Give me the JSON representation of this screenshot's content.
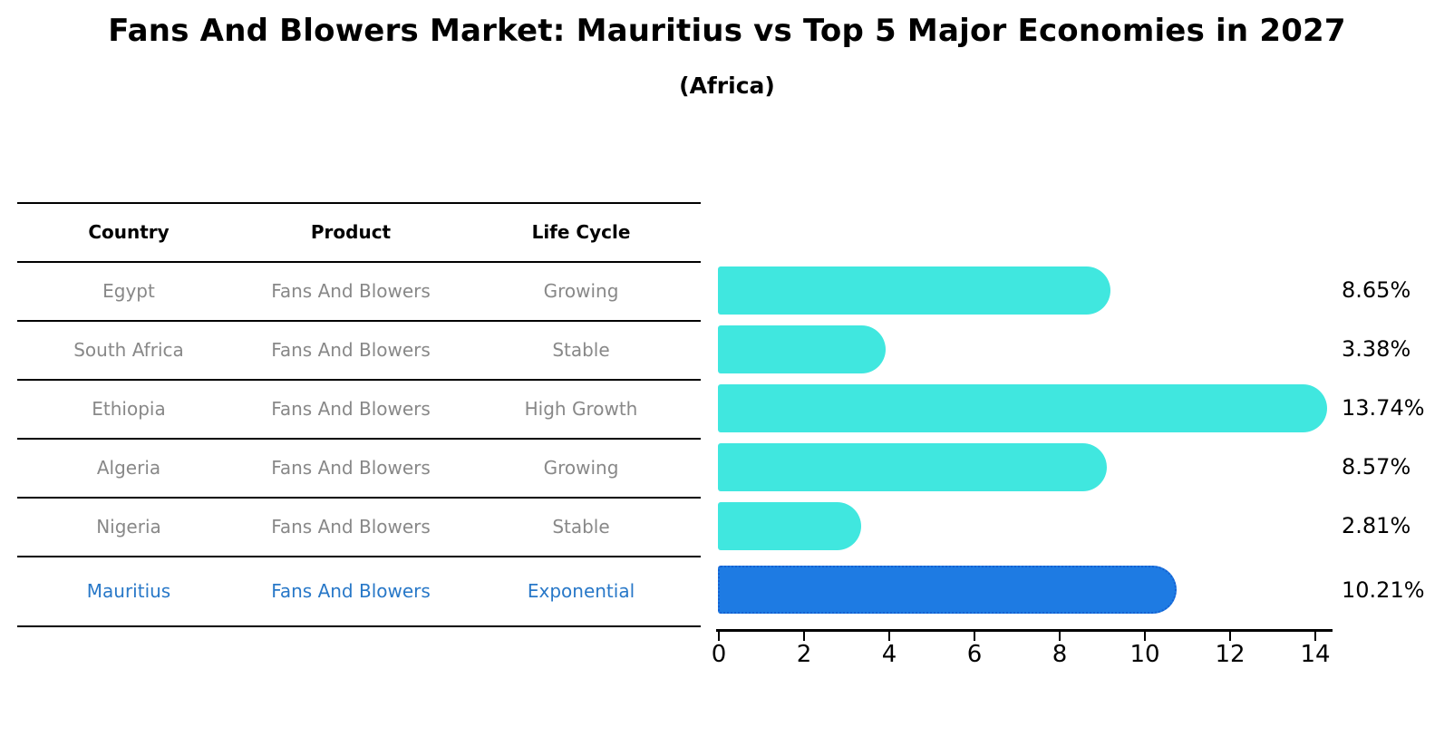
{
  "title": "Fans And Blowers Market: Mauritius vs Top 5 Major Economies in 2027",
  "subtitle": "(Africa)",
  "table": {
    "headers": [
      "Country",
      "Product",
      "Life Cycle"
    ],
    "rows": [
      {
        "country": "Egypt",
        "product": "Fans And Blowers",
        "life_cycle": "Growing"
      },
      {
        "country": "South Africa",
        "product": "Fans And Blowers",
        "life_cycle": "Stable"
      },
      {
        "country": "Ethiopia",
        "product": "Fans And Blowers",
        "life_cycle": "High Growth"
      },
      {
        "country": "Algeria",
        "product": "Fans And Blowers",
        "life_cycle": "Growing"
      },
      {
        "country": "Nigeria",
        "product": "Fans And Blowers",
        "life_cycle": "Stable"
      },
      {
        "country": "Mauritius",
        "product": "Fans And Blowers",
        "life_cycle": "Exponential"
      }
    ]
  },
  "chart_data": {
    "type": "bar",
    "orientation": "horizontal",
    "categories": [
      "Egypt",
      "South Africa",
      "Ethiopia",
      "Algeria",
      "Nigeria",
      "Mauritius"
    ],
    "values": [
      8.65,
      3.38,
      13.74,
      8.57,
      2.81,
      10.21
    ],
    "value_labels": [
      "8.65%",
      "3.38%",
      "13.74%",
      "8.57%",
      "2.81%",
      "10.21%"
    ],
    "xticks": [
      "0",
      "2",
      "4",
      "6",
      "8",
      "10",
      "12",
      "14"
    ],
    "xlim": [
      0,
      14.4
    ],
    "grid": false,
    "legend": false,
    "bar_color": "#40E7DF",
    "highlight_index": 5,
    "highlight_color": "#1E7BE3",
    "highlight_border_color": "#1461D2",
    "highlight_border_style": "dotted",
    "title": "Fans And Blowers Market: Mauritius vs Top 5 Major Economies in 2027",
    "subtitle": "(Africa)"
  },
  "colors": {
    "background": "#FFFFFF",
    "table_text": "#888888",
    "highlight_text": "#2878C8",
    "axis": "#000000",
    "label_text": "#000000"
  }
}
